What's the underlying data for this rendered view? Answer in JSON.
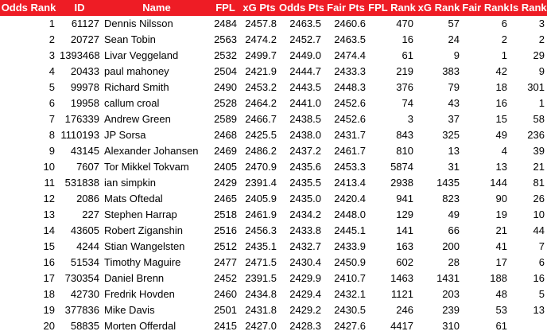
{
  "table": {
    "header": [
      "Odds Rank",
      "ID",
      "Name",
      "FPL",
      "xG Pts",
      "Odds Pts",
      "Fair Pts",
      "FPL Rank",
      "xG Rank",
      "Fair Rank",
      "Is Rank"
    ],
    "rows": [
      [
        "1",
        "61127",
        "Dennis Nilsson",
        "2484",
        "2457.8",
        "2463.5",
        "2460.6",
        "470",
        "57",
        "6",
        "3"
      ],
      [
        "2",
        "20727",
        "Sean Tobin",
        "2563",
        "2474.2",
        "2452.7",
        "2463.5",
        "16",
        "24",
        "2",
        "2"
      ],
      [
        "3",
        "1393468",
        "Livar Veggeland",
        "2532",
        "2499.7",
        "2449.0",
        "2474.4",
        "61",
        "9",
        "1",
        "29"
      ],
      [
        "4",
        "20433",
        "paul mahoney",
        "2504",
        "2421.9",
        "2444.7",
        "2433.3",
        "219",
        "383",
        "42",
        "9"
      ],
      [
        "5",
        "99978",
        "Richard Smith",
        "2490",
        "2453.2",
        "2443.5",
        "2448.3",
        "376",
        "79",
        "18",
        "301"
      ],
      [
        "6",
        "19958",
        "callum croal",
        "2528",
        "2464.2",
        "2441.0",
        "2452.6",
        "74",
        "43",
        "16",
        "1"
      ],
      [
        "7",
        "176339",
        "Andrew Green",
        "2589",
        "2466.7",
        "2438.5",
        "2452.6",
        "3",
        "37",
        "15",
        "58"
      ],
      [
        "8",
        "1110193",
        "JP Sorsa",
        "2468",
        "2425.5",
        "2438.0",
        "2431.7",
        "843",
        "325",
        "49",
        "236"
      ],
      [
        "9",
        "43145",
        "Alexander Johansen",
        "2469",
        "2486.2",
        "2437.2",
        "2461.7",
        "810",
        "13",
        "4",
        "39"
      ],
      [
        "10",
        "7607",
        "Tor Mikkel Tokvam",
        "2405",
        "2470.9",
        "2435.6",
        "2453.3",
        "5874",
        "31",
        "13",
        "21"
      ],
      [
        "11",
        "531838",
        "ian simpkin",
        "2429",
        "2391.4",
        "2435.5",
        "2413.4",
        "2938",
        "1435",
        "144",
        "81"
      ],
      [
        "12",
        "2086",
        "Mats Oftedal",
        "2465",
        "2405.9",
        "2435.0",
        "2420.4",
        "941",
        "823",
        "90",
        "26"
      ],
      [
        "13",
        "227",
        "Stephen Harrap",
        "2518",
        "2461.9",
        "2434.2",
        "2448.0",
        "129",
        "49",
        "19",
        "10"
      ],
      [
        "14",
        "43605",
        "Robert Ziganshin",
        "2516",
        "2456.3",
        "2433.8",
        "2445.1",
        "141",
        "66",
        "21",
        "44"
      ],
      [
        "15",
        "4244",
        "Stian Wangelsten",
        "2512",
        "2435.1",
        "2432.7",
        "2433.9",
        "163",
        "200",
        "41",
        "7"
      ],
      [
        "16",
        "51534",
        "Timothy Maguire",
        "2477",
        "2471.5",
        "2430.4",
        "2450.9",
        "602",
        "28",
        "17",
        "6"
      ],
      [
        "17",
        "730354",
        "Daniel Brenn",
        "2452",
        "2391.5",
        "2429.9",
        "2410.7",
        "1463",
        "1431",
        "188",
        "16"
      ],
      [
        "18",
        "42730",
        "Fredrik Hovden",
        "2460",
        "2434.8",
        "2429.4",
        "2432.1",
        "1121",
        "203",
        "48",
        "5"
      ],
      [
        "19",
        "377836",
        "Mike Davis",
        "2501",
        "2431.8",
        "2429.2",
        "2430.5",
        "246",
        "239",
        "53",
        "13"
      ],
      [
        "20",
        "58835",
        "Morten Offerdal",
        "2415",
        "2427.0",
        "2428.3",
        "2427.6",
        "4417",
        "310",
        "61",
        null
      ]
    ]
  }
}
